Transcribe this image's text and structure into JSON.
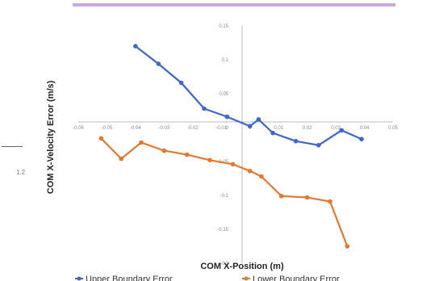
{
  "margin": {
    "number": "1.2"
  },
  "chart_data": {
    "type": "scatter",
    "xlabel": "COM X-Position (m)",
    "ylabel": "COM X-Velocity Error (m/s)",
    "xlim": [
      -0.06,
      0.05
    ],
    "ylim": [
      -0.2,
      0.15
    ],
    "x_ticks": [
      "-0.06",
      "-0.05",
      "-0.04",
      "-0.03",
      "-0.02",
      "-0.01",
      "0",
      "0.01",
      "0.02",
      "0.03",
      "0.04",
      "0.05"
    ],
    "y_ticks": [
      "0.15",
      "0.1",
      "0.05",
      "0",
      "-0.05",
      "-0.1",
      "-0.15",
      "-0.2"
    ],
    "grid": false,
    "legend_position": "bottom",
    "series": [
      {
        "name": "Upper Boundary Error",
        "color": "#3f66c8",
        "points": [
          [
            -0.04,
            0.12
          ],
          [
            -0.032,
            0.094
          ],
          [
            -0.024,
            0.066
          ],
          [
            -0.016,
            0.028
          ],
          [
            -0.008,
            0.016
          ],
          [
            0,
            0.002
          ],
          [
            0.003,
            0.012
          ],
          [
            0.008,
            -0.008
          ],
          [
            0.016,
            -0.02
          ],
          [
            0.024,
            -0.026
          ],
          [
            0.032,
            -0.004
          ],
          [
            0.039,
            -0.017
          ]
        ]
      },
      {
        "name": "Lower Boundary Error",
        "color": "#e4782f",
        "points": [
          [
            -0.052,
            -0.016
          ],
          [
            -0.045,
            -0.046
          ],
          [
            -0.038,
            -0.022
          ],
          [
            -0.03,
            -0.034
          ],
          [
            -0.022,
            -0.04
          ],
          [
            -0.014,
            -0.048
          ],
          [
            -0.006,
            -0.054
          ],
          [
            0,
            -0.064
          ],
          [
            0.004,
            -0.072
          ],
          [
            0.011,
            -0.101
          ],
          [
            0.02,
            -0.103
          ],
          [
            0.028,
            -0.109
          ],
          [
            0.034,
            -0.175
          ]
        ]
      }
    ]
  }
}
